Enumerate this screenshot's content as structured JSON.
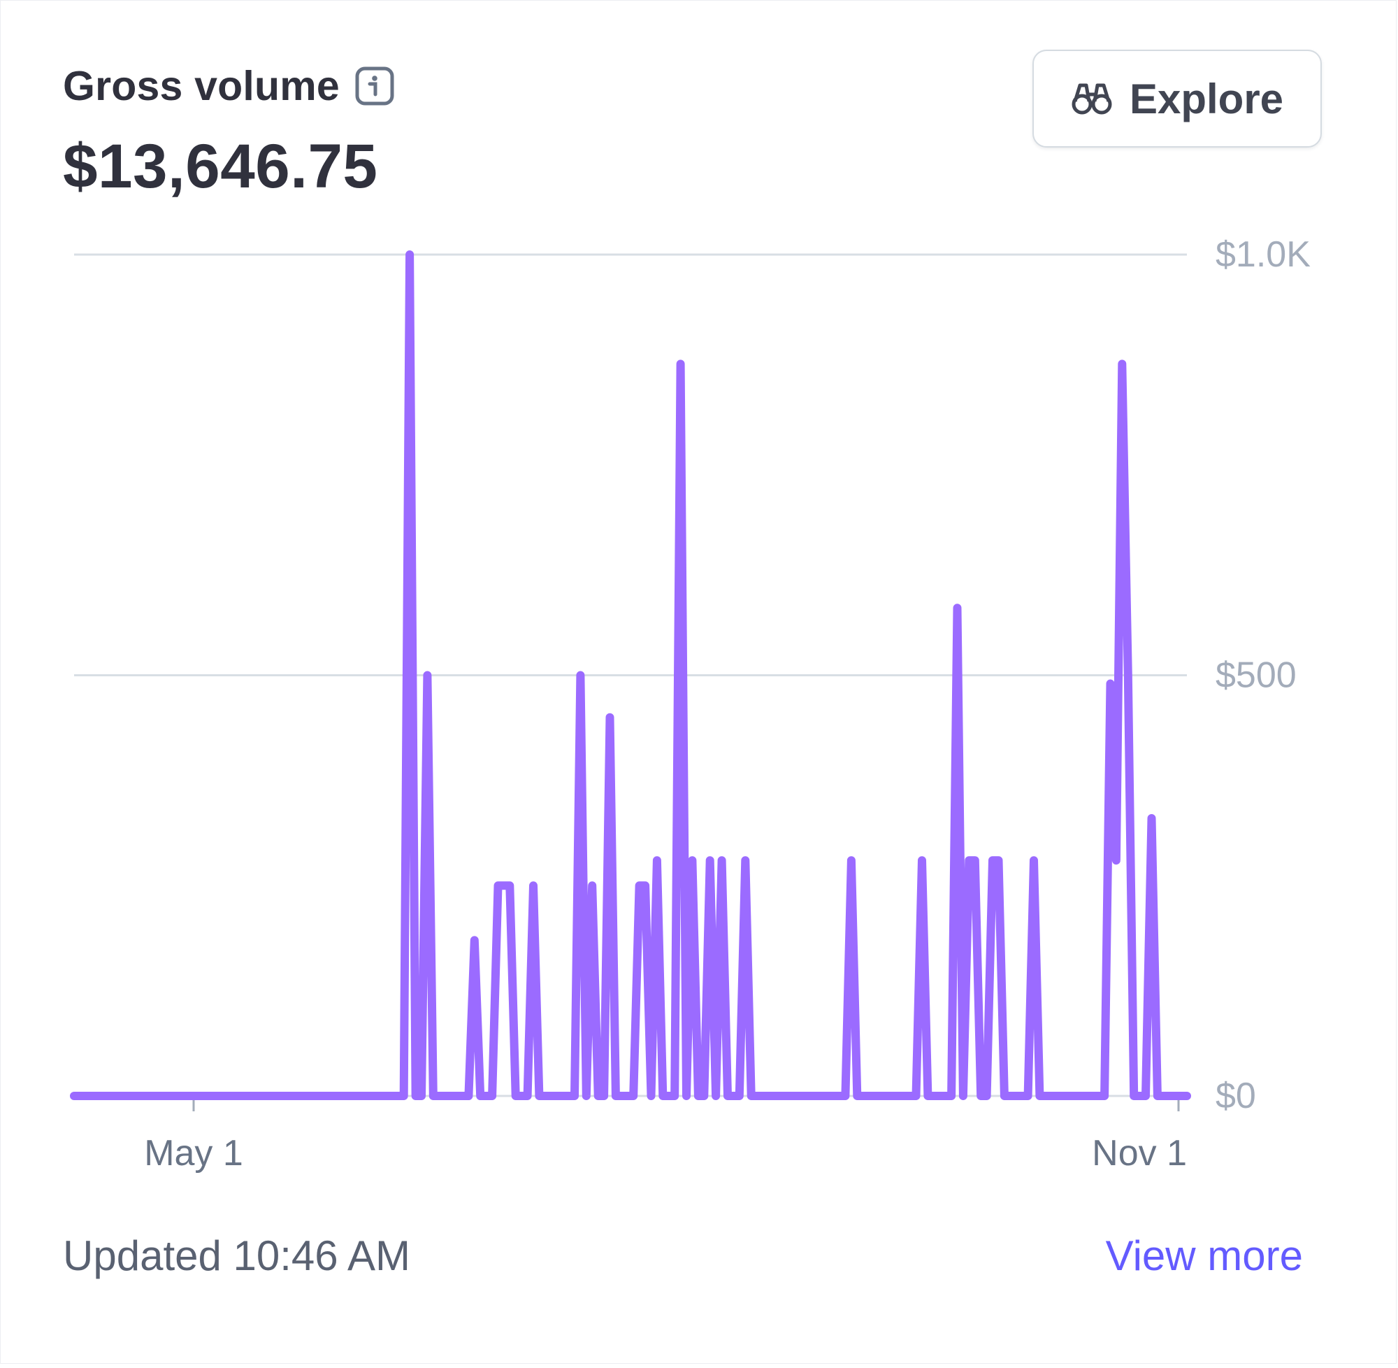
{
  "card": {
    "title": "Gross volume",
    "amount": "$13,646.75",
    "explore_label": "Explore",
    "updated_text": "Updated 10:46 AM",
    "view_more_label": "View more"
  },
  "icons": {
    "info": "info-icon",
    "explore": "binoculars-icon"
  },
  "colors": {
    "series": "#9b6bff",
    "link": "#635bff",
    "text_primary": "#30313d",
    "axis_label": "#a3acba",
    "grid": "#d8dee4"
  },
  "chart_data": {
    "type": "line",
    "x_labels": [
      "May 1",
      "Nov 1"
    ],
    "y_labels": [
      "$1.0K",
      "$500",
      "$0"
    ],
    "ylim": [
      0,
      1000
    ],
    "grid": true,
    "series": [
      {
        "values": [
          0,
          0,
          0,
          0,
          0,
          0,
          0,
          0,
          0,
          0,
          0,
          0,
          0,
          0,
          0,
          0,
          0,
          0,
          0,
          0,
          0,
          0,
          0,
          0,
          0,
          0,
          0,
          0,
          0,
          0,
          0,
          0,
          0,
          0,
          0,
          0,
          0,
          0,
          0,
          0,
          0,
          0,
          0,
          0,
          0,
          0,
          0,
          0,
          0,
          0,
          0,
          0,
          0,
          0,
          0,
          0,
          0,
          1000,
          0,
          0,
          500,
          0,
          0,
          0,
          0,
          0,
          0,
          0,
          185,
          0,
          0,
          0,
          250,
          250,
          250,
          0,
          0,
          0,
          250,
          0,
          0,
          0,
          0,
          0,
          0,
          0,
          500,
          0,
          250,
          0,
          0,
          450,
          0,
          0,
          0,
          0,
          250,
          250,
          0,
          280,
          0,
          0,
          0,
          870,
          0,
          280,
          0,
          0,
          280,
          0,
          280,
          0,
          0,
          0,
          280,
          0,
          0,
          0,
          0,
          0,
          0,
          0,
          0,
          0,
          0,
          0,
          0,
          0,
          0,
          0,
          0,
          0,
          280,
          0,
          0,
          0,
          0,
          0,
          0,
          0,
          0,
          0,
          0,
          0,
          280,
          0,
          0,
          0,
          0,
          0,
          580,
          0,
          280,
          280,
          0,
          0,
          280,
          280,
          0,
          0,
          0,
          0,
          0,
          280,
          0,
          0,
          0,
          0,
          0,
          0,
          0,
          0,
          0,
          0,
          0,
          0,
          490,
          280,
          870,
          500,
          0,
          0,
          0,
          330,
          0,
          0,
          0,
          0,
          0,
          0
        ]
      }
    ]
  }
}
